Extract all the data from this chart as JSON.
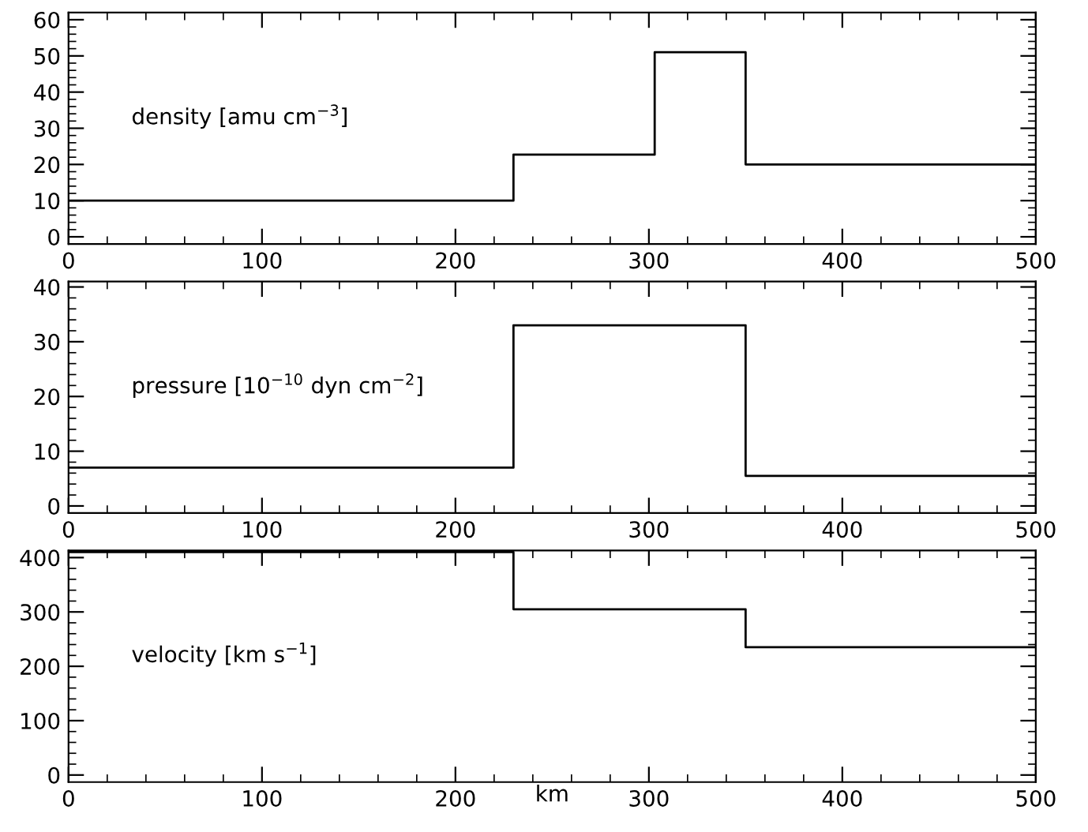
{
  "chart_data": [
    {
      "type": "step",
      "x": [
        0,
        230,
        303,
        350,
        500
      ],
      "values": [
        10,
        22.7,
        51,
        20,
        20
      ],
      "color": "#000000",
      "xlim": [
        0,
        500
      ],
      "xticks": [
        0,
        100,
        200,
        300,
        400,
        500
      ],
      "ylim": [
        -2,
        62
      ],
      "yticks": [
        0,
        10,
        20,
        30,
        40,
        50,
        60
      ],
      "annotations": [
        "density [amu cm$^{−3}$]"
      ],
      "grid": false,
      "marker": "none",
      "line_style": "solid"
    },
    {
      "type": "step",
      "x": [
        0,
        230,
        350,
        500
      ],
      "values": [
        7,
        33,
        5.5,
        5.5
      ],
      "color": "#000000",
      "xlim": [
        0,
        500
      ],
      "xticks": [
        0,
        100,
        200,
        300,
        400,
        500
      ],
      "ylim": [
        -1.3,
        41
      ],
      "yticks": [
        0,
        10,
        20,
        30,
        40
      ],
      "annotations": [
        "pressure [10$^{−10}$ dyn cm$^{−2}$]"
      ],
      "grid": false,
      "marker": "none",
      "line_style": "solid"
    },
    {
      "type": "step",
      "x": [
        0,
        230,
        350,
        500
      ],
      "values": [
        410,
        305,
        235,
        235
      ],
      "color": "#000000",
      "xlim": [
        0,
        500
      ],
      "xticks": [
        0,
        100,
        200,
        300,
        400,
        500
      ],
      "ylim": [
        -13,
        413
      ],
      "yticks": [
        0,
        100,
        200,
        300,
        400
      ],
      "xlabel": "km",
      "annotations": [
        "velocity [km s$^{−1}$]"
      ],
      "grid": false,
      "marker": "none",
      "line_style": "solid"
    }
  ]
}
